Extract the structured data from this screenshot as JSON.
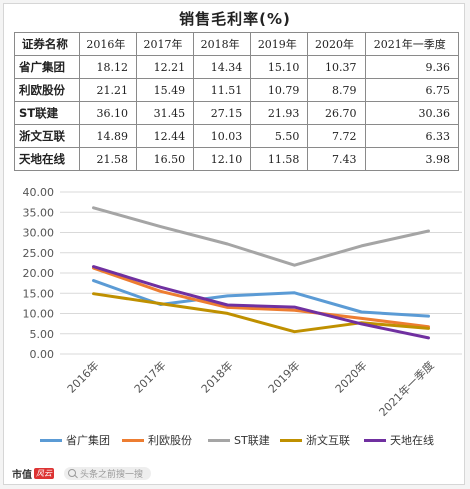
{
  "title": "销售毛利率(%)",
  "table": {
    "header": [
      "证券名称",
      "2016年",
      "2017年",
      "2018年",
      "2019年",
      "2020年",
      "2021年一季度"
    ],
    "rows": [
      {
        "name": "省广集团",
        "values": [
          "18.12",
          "12.21",
          "14.34",
          "15.10",
          "10.37",
          "9.36"
        ]
      },
      {
        "name": "利欧股份",
        "values": [
          "21.21",
          "15.49",
          "11.51",
          "10.79",
          "8.79",
          "6.75"
        ]
      },
      {
        "name": "ST联建",
        "values": [
          "36.10",
          "31.45",
          "27.15",
          "21.93",
          "26.70",
          "30.36"
        ]
      },
      {
        "name": "浙文互联",
        "values": [
          "14.89",
          "12.44",
          "10.03",
          "5.50",
          "7.72",
          "6.33"
        ]
      },
      {
        "name": "天地在线",
        "values": [
          "21.58",
          "16.50",
          "12.10",
          "11.58",
          "7.43",
          "3.98"
        ]
      }
    ]
  },
  "chart_data": {
    "type": "line",
    "categories": [
      "2016年",
      "2017年",
      "2018年",
      "2019年",
      "2020年",
      "2021年一季度"
    ],
    "ylim": [
      0,
      40
    ],
    "yticks": [
      "0.00",
      "5.00",
      "10.00",
      "15.00",
      "20.00",
      "25.00",
      "30.00",
      "35.00",
      "40.00"
    ],
    "grid": true,
    "legend": "bottom",
    "series": [
      {
        "name": "省广集团",
        "color": "#5b9bd5",
        "values": [
          18.12,
          12.21,
          14.34,
          15.1,
          10.37,
          9.36
        ]
      },
      {
        "name": "利欧股份",
        "color": "#ed7d31",
        "values": [
          21.21,
          15.49,
          11.51,
          10.79,
          8.79,
          6.75
        ]
      },
      {
        "name": "ST联建",
        "color": "#a5a5a5",
        "values": [
          36.1,
          31.45,
          27.15,
          21.93,
          26.7,
          30.36
        ]
      },
      {
        "name": "浙文互联",
        "color": "#bf9000",
        "values": [
          14.89,
          12.44,
          10.03,
          5.5,
          7.72,
          6.33
        ]
      },
      {
        "name": "天地在线",
        "color": "#7030a0",
        "values": [
          21.58,
          16.5,
          12.1,
          11.58,
          7.43,
          3.98
        ]
      }
    ]
  },
  "footer": {
    "brand": "市值",
    "brand_mark": "风云",
    "search_hint": "头条之前搜一搜"
  }
}
